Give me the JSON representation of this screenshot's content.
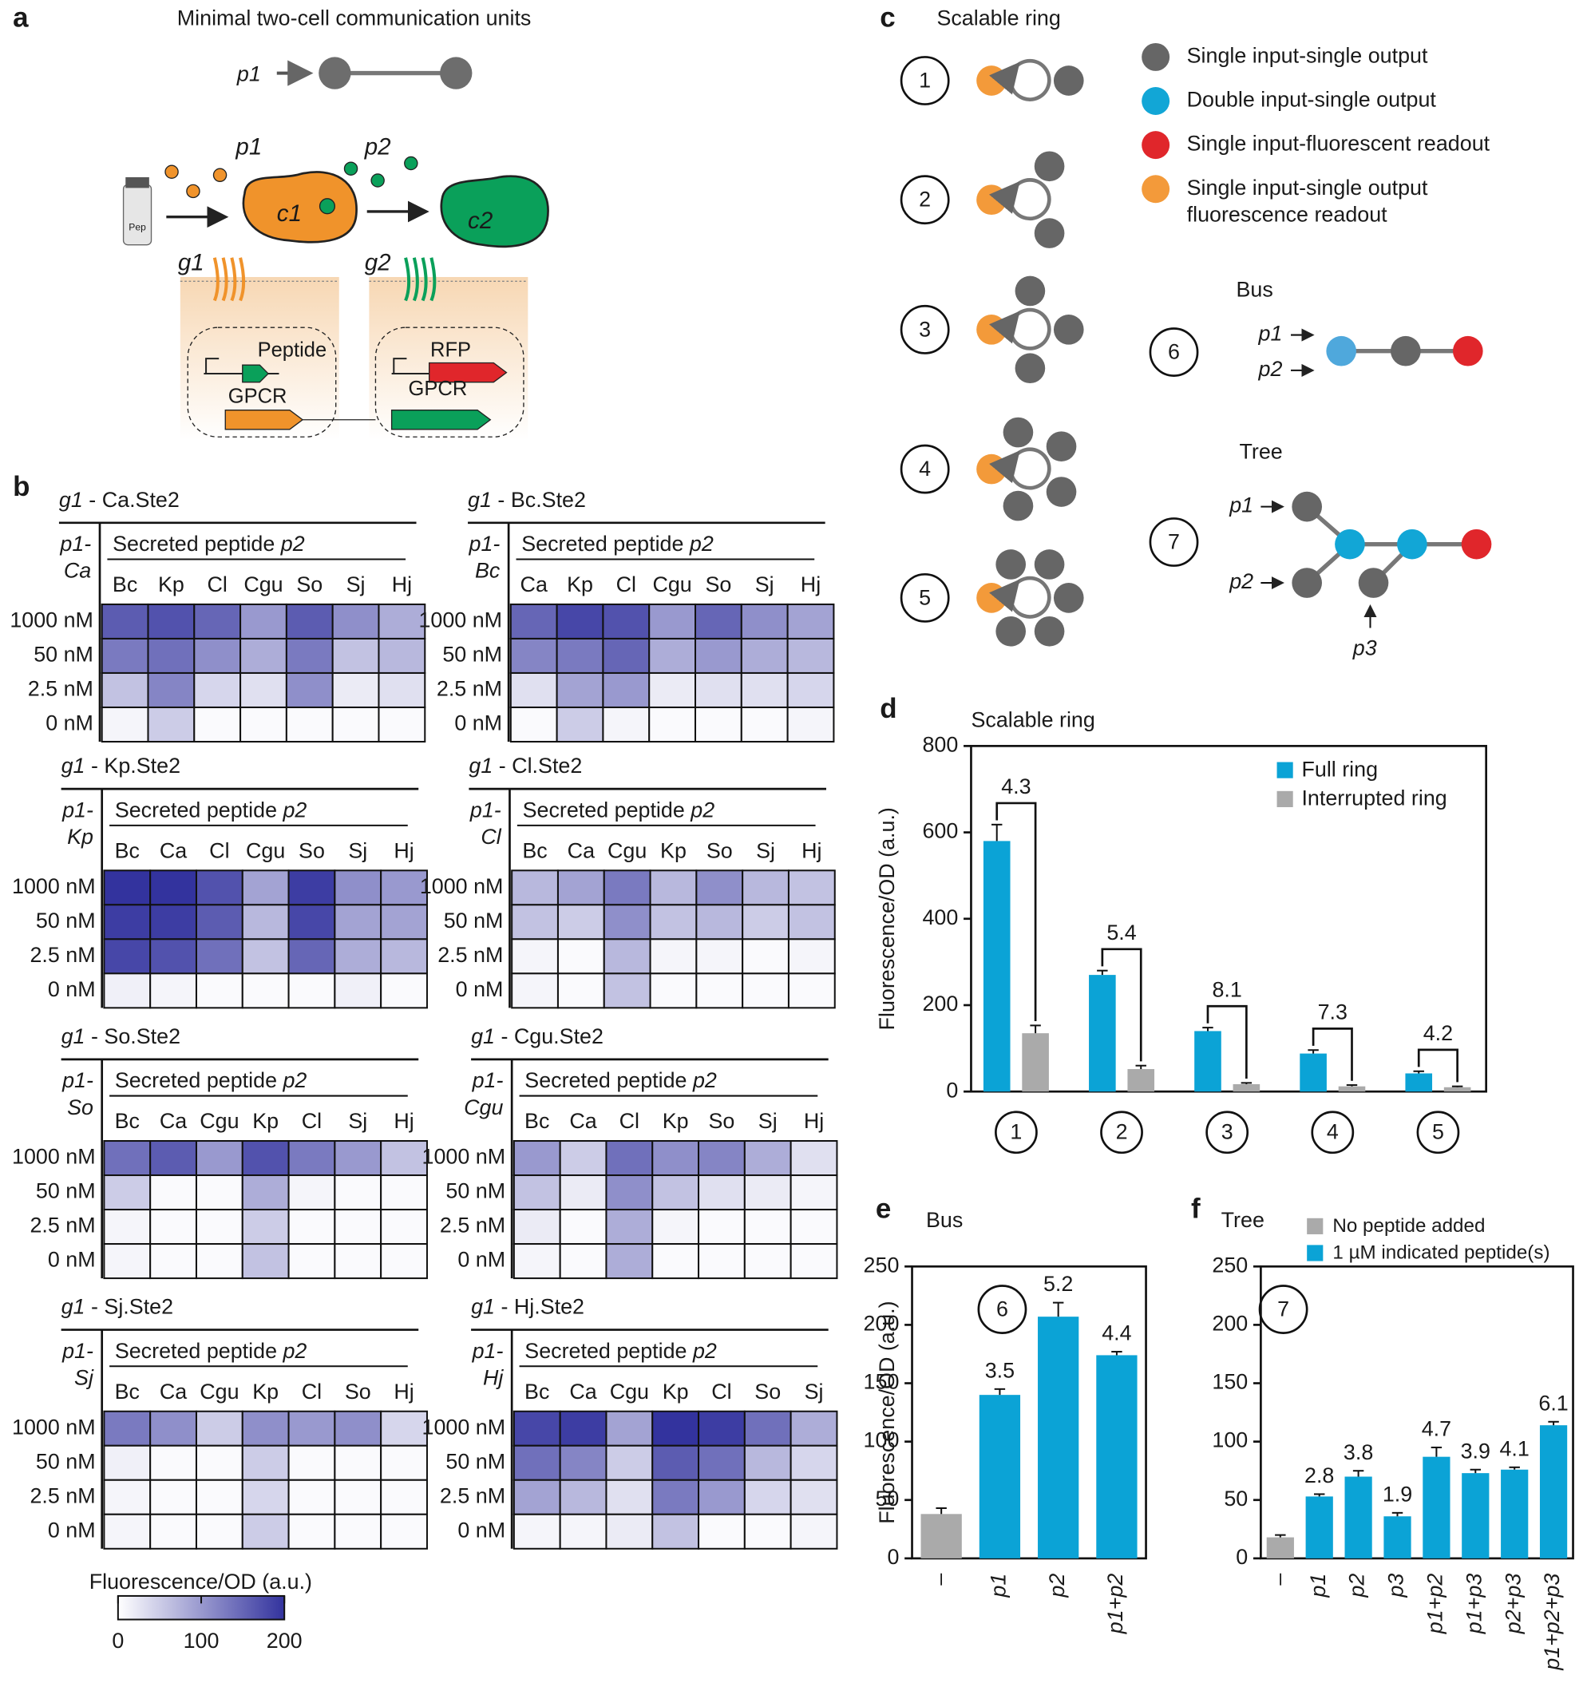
{
  "panel_labels": [
    "a",
    "b",
    "c",
    "d",
    "e",
    "f"
  ],
  "panel_a": {
    "title": "Minimal two-cell communication units",
    "input": "p1",
    "peptide_1": "p1",
    "peptide_2": "p2",
    "cell_1": "c1",
    "cell_2": "c2",
    "vial": "Pep",
    "gene_1": "g1",
    "gene_2": "g2",
    "box_1": [
      "Peptide",
      "GPCR"
    ],
    "box_2": [
      "RFP",
      "GPCR"
    ]
  },
  "panel_c": {
    "title": "Scalable ring",
    "rings": [
      "1",
      "2",
      "3",
      "4",
      "5"
    ],
    "legend": [
      {
        "label": [
          "Single input-single output"
        ],
        "color": "#666666"
      },
      {
        "label": [
          "Double input-single output"
        ],
        "color": "#12a6d6"
      },
      {
        "label": [
          "Single input-fluorescent readout"
        ],
        "color": "#e0262b"
      },
      {
        "label": [
          "Single input-single output",
          "fluorescence readout"
        ],
        "color": "#f39a3a"
      }
    ],
    "bus": {
      "title": "Bus",
      "number": "6",
      "inputs": [
        "p1",
        "p2"
      ]
    },
    "tree": {
      "title": "Tree",
      "number": "7",
      "inputs": [
        "p1",
        "p2",
        "p3"
      ]
    }
  },
  "colorbar": {
    "label": "Fluorescence/OD (a.u.)",
    "lim": [
      0,
      200
    ],
    "ticks": [
      0,
      100,
      200
    ],
    "colors": [
      "#ffffff",
      "#33339e"
    ]
  },
  "chart_data": [
    {
      "type": "heatmap",
      "title_gene": "g1",
      "title": "- Ca.Ste2",
      "row_axis_label": [
        "p1-",
        "Ca"
      ],
      "column_axis_label": "Secreted peptide",
      "column_axis_var": "p2",
      "columns": [
        "Bc",
        "Kp",
        "Cl",
        "Cgu",
        "So",
        "Sj",
        "Hj"
      ],
      "rows": [
        "1000 nM",
        "50 nM",
        "2.5 nM",
        "0 nM"
      ],
      "values": [
        [
          160,
          170,
          150,
          100,
          160,
          110,
          80
        ],
        [
          130,
          140,
          110,
          80,
          130,
          60,
          70
        ],
        [
          60,
          120,
          40,
          30,
          110,
          20,
          30
        ],
        [
          10,
          50,
          5,
          5,
          5,
          5,
          5
        ]
      ]
    },
    {
      "type": "heatmap",
      "title_gene": "g1",
      "title": "- Bc.Ste2",
      "row_axis_label": [
        "p1-",
        "Bc"
      ],
      "column_axis_label": "Secreted peptide",
      "column_axis_var": "p2",
      "columns": [
        "Ca",
        "Kp",
        "Cl",
        "Cgu",
        "So",
        "Sj",
        "Hj"
      ],
      "rows": [
        "1000 nM",
        "50 nM",
        "2.5 nM",
        "0 nM"
      ],
      "values": [
        [
          150,
          180,
          170,
          100,
          150,
          110,
          90
        ],
        [
          120,
          130,
          150,
          80,
          100,
          80,
          70
        ],
        [
          30,
          90,
          100,
          20,
          30,
          30,
          40
        ],
        [
          5,
          50,
          10,
          5,
          5,
          5,
          10
        ]
      ]
    },
    {
      "type": "heatmap",
      "title_gene": "g1",
      "title": "- Kp.Ste2",
      "row_axis_label": [
        "p1-",
        "Kp"
      ],
      "column_axis_label": "Secreted peptide",
      "column_axis_var": "p2",
      "columns": [
        "Bc",
        "Ca",
        "Cl",
        "Cgu",
        "So",
        "Sj",
        "Hj"
      ],
      "rows": [
        "1000 nM",
        "50 nM",
        "2.5 nM",
        "0 nM"
      ],
      "values": [
        [
          200,
          200,
          170,
          90,
          190,
          110,
          100
        ],
        [
          190,
          190,
          160,
          70,
          180,
          90,
          90
        ],
        [
          180,
          170,
          140,
          60,
          150,
          80,
          70
        ],
        [
          15,
          10,
          5,
          5,
          5,
          15,
          5
        ]
      ]
    },
    {
      "type": "heatmap",
      "title_gene": "g1",
      "title": "- Cl.Ste2",
      "row_axis_label": [
        "p1-",
        "Cl"
      ],
      "column_axis_label": "Secreted peptide",
      "column_axis_var": "p2",
      "columns": [
        "Bc",
        "Ca",
        "Cgu",
        "Kp",
        "So",
        "Sj",
        "Hj"
      ],
      "rows": [
        "1000 nM",
        "50 nM",
        "2.5 nM",
        "0 nM"
      ],
      "values": [
        [
          70,
          90,
          130,
          70,
          110,
          70,
          60
        ],
        [
          60,
          50,
          110,
          60,
          70,
          50,
          60
        ],
        [
          10,
          5,
          70,
          10,
          10,
          5,
          10
        ],
        [
          10,
          5,
          60,
          5,
          5,
          5,
          5
        ]
      ]
    },
    {
      "type": "heatmap",
      "title_gene": "g1",
      "title": "- So.Ste2",
      "row_axis_label": [
        "p1-",
        "So"
      ],
      "column_axis_label": "Secreted peptide",
      "column_axis_var": "p2",
      "columns": [
        "Bc",
        "Ca",
        "Cgu",
        "Kp",
        "Cl",
        "Sj",
        "Hj"
      ],
      "rows": [
        "1000 nM",
        "50 nM",
        "2.5 nM",
        "0 nM"
      ],
      "values": [
        [
          140,
          160,
          100,
          170,
          130,
          100,
          60
        ],
        [
          50,
          5,
          5,
          80,
          10,
          5,
          5
        ],
        [
          10,
          5,
          5,
          50,
          5,
          5,
          5
        ],
        [
          10,
          5,
          5,
          60,
          5,
          5,
          5
        ]
      ]
    },
    {
      "type": "heatmap",
      "title_gene": "g1",
      "title": "- Cgu.Ste2",
      "row_axis_label": [
        "p1-",
        "Cgu"
      ],
      "column_axis_label": "Secreted peptide",
      "column_axis_var": "p2",
      "columns": [
        "Bc",
        "Ca",
        "Cl",
        "Kp",
        "So",
        "Sj",
        "Hj"
      ],
      "rows": [
        "1000 nM",
        "50 nM",
        "2.5 nM",
        "0 nM"
      ],
      "values": [
        [
          100,
          50,
          140,
          110,
          120,
          80,
          30
        ],
        [
          60,
          20,
          110,
          60,
          30,
          20,
          10
        ],
        [
          20,
          5,
          80,
          10,
          5,
          5,
          5
        ],
        [
          10,
          5,
          80,
          5,
          5,
          5,
          5
        ]
      ]
    },
    {
      "type": "heatmap",
      "title_gene": "g1",
      "title": "- Sj.Ste2",
      "row_axis_label": [
        "p1-",
        "Sj"
      ],
      "column_axis_label": "Secreted peptide",
      "column_axis_var": "p2",
      "columns": [
        "Bc",
        "Ca",
        "Cgu",
        "Kp",
        "Cl",
        "So",
        "Hj"
      ],
      "rows": [
        "1000 nM",
        "50 nM",
        "2.5 nM",
        "0 nM"
      ],
      "values": [
        [
          130,
          110,
          50,
          110,
          100,
          110,
          40
        ],
        [
          15,
          5,
          5,
          50,
          5,
          5,
          5
        ],
        [
          10,
          5,
          5,
          40,
          5,
          5,
          5
        ],
        [
          10,
          5,
          5,
          50,
          5,
          5,
          5
        ]
      ]
    },
    {
      "type": "heatmap",
      "title_gene": "g1",
      "title": "- Hj.Ste2",
      "row_axis_label": [
        "p1-",
        "Hj"
      ],
      "column_axis_label": "Secreted peptide",
      "column_axis_var": "p2",
      "columns": [
        "Bc",
        "Ca",
        "Cgu",
        "Kp",
        "Cl",
        "So",
        "Sj"
      ],
      "rows": [
        "1000 nM",
        "50 nM",
        "2.5 nM",
        "0 nM"
      ],
      "values": [
        [
          180,
          190,
          90,
          200,
          190,
          140,
          80
        ],
        [
          140,
          120,
          50,
          160,
          140,
          70,
          40
        ],
        [
          90,
          70,
          30,
          130,
          100,
          40,
          30
        ],
        [
          10,
          10,
          20,
          60,
          5,
          5,
          10
        ]
      ]
    },
    {
      "type": "grouped_bar",
      "title": "Scalable ring",
      "y_label": "Fluorescence/OD (a.u.)",
      "categories": [
        "1",
        "2",
        "3",
        "4",
        "5"
      ],
      "series": [
        {
          "name": "Full ring",
          "color": "#0ba3d6",
          "values": [
            580,
            270,
            140,
            88,
            42
          ],
          "errors": [
            38,
            10,
            8,
            8,
            5
          ]
        },
        {
          "name": "Interrupted ring",
          "color": "#aaaaaa",
          "values": [
            135,
            52,
            17,
            12,
            10
          ],
          "errors": [
            18,
            8,
            3,
            3,
            2
          ]
        }
      ],
      "fold_changes": [
        "4.3",
        "5.4",
        "8.1",
        "7.3",
        "4.2"
      ],
      "ylim": [
        0,
        800
      ],
      "yticks": [
        0,
        200,
        400,
        600,
        800
      ]
    },
    {
      "type": "bar",
      "title": "Bus",
      "label": "6",
      "y_label": "Fluorescence/OD (a.u.)",
      "categories": [
        "–",
        "p1",
        "p2",
        "p1+p2"
      ],
      "values": [
        38,
        140,
        207,
        174
      ],
      "errors": [
        5,
        5,
        12,
        3
      ],
      "colors": [
        "#aaaaaa",
        "#0ba3d6",
        "#0ba3d6",
        "#0ba3d6"
      ],
      "fold_changes": [
        null,
        "3.5",
        "5.2",
        "4.4"
      ],
      "ylim": [
        0,
        250
      ],
      "yticks": [
        0,
        50,
        100,
        150,
        200,
        250
      ]
    },
    {
      "type": "bar",
      "title": "Tree",
      "label": "7",
      "categories": [
        "–",
        "p1",
        "p2",
        "p3",
        "p1+p2",
        "p1+p3",
        "p2+p3",
        "p1+p2+p3"
      ],
      "values": [
        18,
        53,
        70,
        36,
        87,
        73,
        76,
        114
      ],
      "errors": [
        2,
        2,
        5,
        3,
        8,
        3,
        2,
        3
      ],
      "colors": [
        "#aaaaaa",
        "#0ba3d6",
        "#0ba3d6",
        "#0ba3d6",
        "#0ba3d6",
        "#0ba3d6",
        "#0ba3d6",
        "#0ba3d6"
      ],
      "fold_changes": [
        null,
        "2.8",
        "3.8",
        "1.9",
        "4.7",
        "3.9",
        "4.1",
        "6.1"
      ],
      "legend": [
        {
          "name": "No peptide added",
          "color": "#aaaaaa"
        },
        {
          "name": "1 µM indicated peptide(s)",
          "color": "#0ba3d6"
        }
      ],
      "ylim": [
        0,
        250
      ],
      "yticks": [
        0,
        50,
        100,
        150,
        200,
        250
      ]
    }
  ]
}
